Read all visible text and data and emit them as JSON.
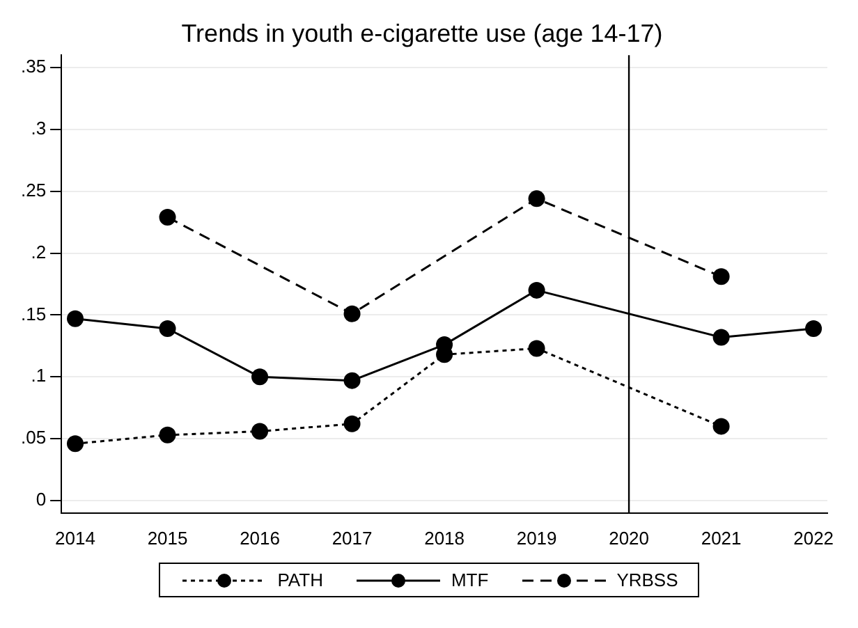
{
  "chart_data": {
    "type": "line",
    "title": "Trends in youth e-cigarette use (age 14-17)",
    "xlim": [
      2013.85,
      2022.15
    ],
    "xticks": [
      2014,
      2015,
      2016,
      2017,
      2018,
      2019,
      2020,
      2021,
      2022
    ],
    "ylim": [
      -0.01,
      0.36
    ],
    "yticks": [
      {
        "value": 0,
        "label": "0"
      },
      {
        "value": 0.05,
        "label": ".05"
      },
      {
        "value": 0.1,
        "label": ".1"
      },
      {
        "value": 0.15,
        "label": ".15"
      },
      {
        "value": 0.2,
        "label": ".2"
      },
      {
        "value": 0.25,
        "label": ".25"
      },
      {
        "value": 0.3,
        "label": ".3"
      },
      {
        "value": 0.35,
        "label": ".35"
      }
    ],
    "grid": "y",
    "legend": "bottom",
    "marker": "circle",
    "ref_lines": [
      {
        "axis": "x",
        "value": 2020,
        "color": "#000000"
      }
    ],
    "series": [
      {
        "name": "PATH",
        "color": "#000000",
        "line_style": "dotted",
        "x": [
          2014,
          2015,
          2016,
          2017,
          2018,
          2019,
          2021
        ],
        "values": [
          0.046,
          0.053,
          0.056,
          0.062,
          0.118,
          0.123,
          0.06
        ]
      },
      {
        "name": "MTF",
        "color": "#000000",
        "line_style": "solid",
        "x": [
          2014,
          2015,
          2016,
          2017,
          2018,
          2019,
          2021,
          2022
        ],
        "values": [
          0.147,
          0.139,
          0.1,
          0.097,
          0.126,
          0.17,
          0.132,
          0.139
        ]
      },
      {
        "name": "YRBSS",
        "color": "#000000",
        "line_style": "dashed",
        "x": [
          2015,
          2017,
          2019,
          2021
        ],
        "values": [
          0.229,
          0.151,
          0.244,
          0.181
        ]
      }
    ]
  }
}
